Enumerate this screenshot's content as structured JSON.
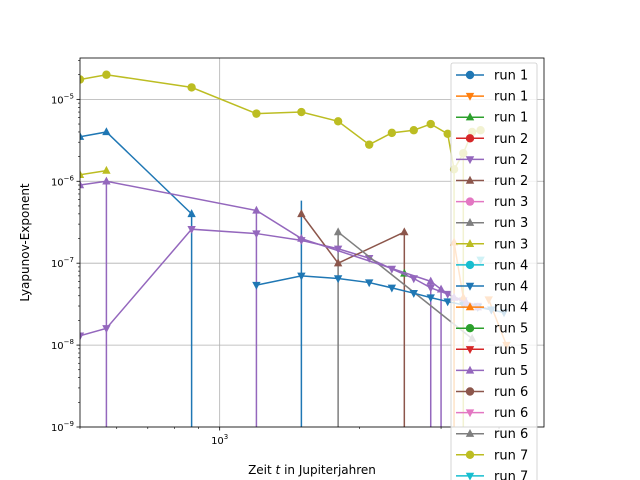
{
  "chart_data": {
    "type": "line",
    "title": "",
    "xlabel_prefix": "Zeit ",
    "xlabel_var": "t",
    "xlabel_suffix": " in Jupiterjahren",
    "ylabel": "Lyapunov-Exponent",
    "xscale": "log",
    "yscale": "log",
    "xlim": [
      500,
      5000
    ],
    "ylim": [
      1e-09,
      3.2e-05
    ],
    "grid": true,
    "legend_position": "right",
    "x_tick_labels": [
      {
        "value": 1000,
        "base": "10",
        "exp": "3"
      }
    ],
    "y_tick_labels": [
      {
        "value": 1e-09,
        "base": "10",
        "exp": "−9"
      },
      {
        "value": 1e-08,
        "base": "10",
        "exp": "−8"
      },
      {
        "value": 1e-07,
        "base": "10",
        "exp": "−7"
      },
      {
        "value": 1e-06,
        "base": "10",
        "exp": "−6"
      },
      {
        "value": 1e-05,
        "base": "10",
        "exp": "−5"
      }
    ],
    "series": [
      {
        "name": "run 1",
        "color": "#1f77b4",
        "marker": "circle",
        "x": [],
        "y": []
      },
      {
        "name": "run 1",
        "color": "#ff7f0e",
        "marker": "triangle-down",
        "x": [
          3800,
          4150
        ],
        "y": [
          3.6e-08,
          1e-08
        ]
      },
      {
        "name": "run 1",
        "color": "#2ca02c",
        "marker": "triangle-up",
        "x": [
          2500
        ],
        "y": [
          7.5e-08
        ]
      },
      {
        "name": "run 2",
        "color": "#d62728",
        "marker": "circle",
        "x": [],
        "y": []
      },
      {
        "name": "run 2",
        "color": "#9467bd",
        "marker": "triangle-down",
        "x": [
          500,
          570,
          870,
          1200,
          1500,
          1800,
          2100,
          2350,
          2620,
          2850,
          3100,
          3350,
          3600,
          3850
        ],
        "y": [
          1.3e-08,
          1.6e-08,
          2.6e-07,
          2.3e-07,
          1.9e-07,
          1.5e-07,
          1.15e-07,
          8.5e-08,
          6.5e-08,
          5e-08,
          4.2e-08,
          3.5e-08,
          3e-08,
          2.7e-08
        ]
      },
      {
        "name": "run 2",
        "color": "#8c564b",
        "marker": "triangle-up",
        "x": [
          1500,
          1800,
          2500
        ],
        "y": [
          4e-07,
          1e-07,
          2.4e-07
        ]
      },
      {
        "name": "run 3",
        "color": "#e377c2",
        "marker": "circle",
        "x": [],
        "y": []
      },
      {
        "name": "run 3",
        "color": "#7f7f7f",
        "marker": "triangle-up",
        "x": [
          1800,
          3500
        ],
        "y": [
          2.4e-07,
          1.2e-08
        ]
      },
      {
        "name": "run 3",
        "color": "#bcbd22",
        "marker": "triangle-up",
        "x": [
          500,
          570
        ],
        "y": [
          1.2e-06,
          1.35e-06
        ]
      },
      {
        "name": "run 4",
        "color": "#17becf",
        "marker": "circle",
        "x": [],
        "y": []
      },
      {
        "name": "run 4",
        "color": "#1f77b4",
        "marker": "triangle-down",
        "x": [
          1200,
          1500,
          1800,
          2100,
          2350,
          2620,
          2850,
          3100,
          3350,
          3600,
          3850,
          4100
        ],
        "y": [
          5.4e-08,
          7e-08,
          6.5e-08,
          5.8e-08,
          5e-08,
          4.3e-08,
          3.8e-08,
          3.4e-08,
          3.1e-08,
          2.9e-08,
          2.7e-08,
          2.5e-08
        ]
      },
      {
        "name": "run 4",
        "color": "#ff7f0e",
        "marker": "triangle-up",
        "x": [
          3200,
          3350
        ],
        "y": [
          1.8e-07,
          3.8e-08
        ]
      },
      {
        "name": "run 5",
        "color": "#2ca02c",
        "marker": "circle",
        "x": [],
        "y": []
      },
      {
        "name": "run 5",
        "color": "#d62728",
        "marker": "triangle-down",
        "x": [],
        "y": []
      },
      {
        "name": "run 5",
        "color": "#9467bd",
        "marker": "triangle-up",
        "x": [
          500,
          570,
          1200,
          1500,
          2850,
          3000,
          3200,
          3400,
          3600
        ],
        "y": [
          9e-07,
          1e-06,
          4.4e-07,
          2e-07,
          6e-08,
          4.8e-08,
          3.8e-08,
          3.3e-08,
          2.9e-08
        ]
      },
      {
        "name": "run 6",
        "color": "#8c564b",
        "marker": "circle",
        "x": [],
        "y": []
      },
      {
        "name": "run 6",
        "color": "#e377c2",
        "marker": "triangle-down",
        "x": [],
        "y": []
      },
      {
        "name": "run 6",
        "color": "#7f7f7f",
        "marker": "triangle-up",
        "x": [],
        "y": []
      },
      {
        "name": "run 7",
        "color": "#bcbd22",
        "marker": "circle",
        "x": [
          500,
          570,
          870,
          1200,
          1500,
          1800,
          2100,
          2350,
          2620,
          2850,
          3100,
          3200,
          3350,
          3500,
          3650
        ],
        "y": [
          1.75e-05,
          2e-05,
          1.4e-05,
          6.7e-06,
          7e-06,
          5.4e-06,
          2.8e-06,
          3.9e-06,
          4.2e-06,
          5e-06,
          3.8e-06,
          1.4e-06,
          2.2e-06,
          4e-06,
          4.2e-06
        ]
      },
      {
        "name": "run 7",
        "color": "#17becf",
        "marker": "triangle-down",
        "x": [
          3650
        ],
        "y": [
          1.1e-07
        ]
      }
    ],
    "drops": [
      {
        "color": "#9467bd",
        "x": 570,
        "from": 1e-06
      },
      {
        "color": "#1f77b4",
        "x": 870,
        "from": 4e-07
      },
      {
        "color": "#9467bd",
        "x": 1200,
        "from": 4.4e-07
      },
      {
        "color": "#1f77b4",
        "x": 1500,
        "from": 5.8e-07
      },
      {
        "color": "#7f7f7f",
        "x": 1800,
        "from": 2.4e-07
      },
      {
        "color": "#8c564b",
        "x": 2500,
        "from": 2.4e-07
      },
      {
        "color": "#9467bd",
        "x": 2850,
        "from": 6e-08
      },
      {
        "color": "#9467bd",
        "x": 3000,
        "from": 4.8e-08
      },
      {
        "color": "#bcbd22",
        "x": 3200,
        "from": 1.4e-06
      },
      {
        "color": "#bcbd22",
        "x": 3350,
        "from": 2.2e-06
      },
      {
        "color": "#ff7f0e",
        "x": 3200,
        "from": 1.8e-07
      }
    ],
    "blue_top_series": {
      "color": "#1f77b4",
      "marker": "triangle-up",
      "x": [
        500,
        570,
        870
      ],
      "y": [
        3.5e-06,
        4e-06,
        4e-07
      ]
    }
  }
}
